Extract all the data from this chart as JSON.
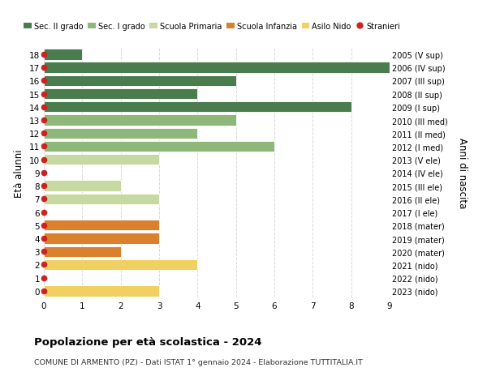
{
  "ages": [
    18,
    17,
    16,
    15,
    14,
    13,
    12,
    11,
    10,
    9,
    8,
    7,
    6,
    5,
    4,
    3,
    2,
    1,
    0
  ],
  "right_labels": [
    "2005 (V sup)",
    "2006 (IV sup)",
    "2007 (III sup)",
    "2008 (II sup)",
    "2009 (I sup)",
    "2010 (III med)",
    "2011 (II med)",
    "2012 (I med)",
    "2013 (V ele)",
    "2014 (IV ele)",
    "2015 (III ele)",
    "2016 (II ele)",
    "2017 (I ele)",
    "2018 (mater)",
    "2019 (mater)",
    "2020 (mater)",
    "2021 (nido)",
    "2022 (nido)",
    "2023 (nido)"
  ],
  "values": [
    1,
    9,
    5,
    4,
    8,
    5,
    4,
    6,
    3,
    0,
    2,
    3,
    0,
    3,
    3,
    2,
    4,
    0,
    3
  ],
  "bar_colors": [
    "#4a7c4e",
    "#4a7c4e",
    "#4a7c4e",
    "#4a7c4e",
    "#4a7c4e",
    "#8db87a",
    "#8db87a",
    "#8db87a",
    "#c5d9a0",
    "#c5d9a0",
    "#c5d9a0",
    "#c5d9a0",
    "#c5d9a0",
    "#d9812c",
    "#d9812c",
    "#d9812c",
    "#f0d060",
    "#f0d060",
    "#f0d060"
  ],
  "dot_color": "#cc2222",
  "title": "Popolazione per età scolastica - 2024",
  "subtitle": "COMUNE DI ARMENTO (PZ) - Dati ISTAT 1° gennaio 2024 - Elaborazione TUTTITALIA.IT",
  "ylabel_left": "Età alunni",
  "ylabel_right": "Anni di nascita",
  "xlim": [
    0,
    9
  ],
  "xticks": [
    0,
    1,
    2,
    3,
    4,
    5,
    6,
    7,
    8,
    9
  ],
  "legend_labels": [
    "Sec. II grado",
    "Sec. I grado",
    "Scuola Primaria",
    "Scuola Infanzia",
    "Asilo Nido",
    "Stranieri"
  ],
  "legend_colors": [
    "#4a7c4e",
    "#8db87a",
    "#c5d9a0",
    "#d9812c",
    "#f0d060",
    "#cc2222"
  ],
  "legend_marker_types": [
    "bar",
    "bar",
    "bar",
    "bar",
    "bar",
    "dot"
  ],
  "background_color": "#ffffff",
  "grid_color": "#d8d8d8"
}
